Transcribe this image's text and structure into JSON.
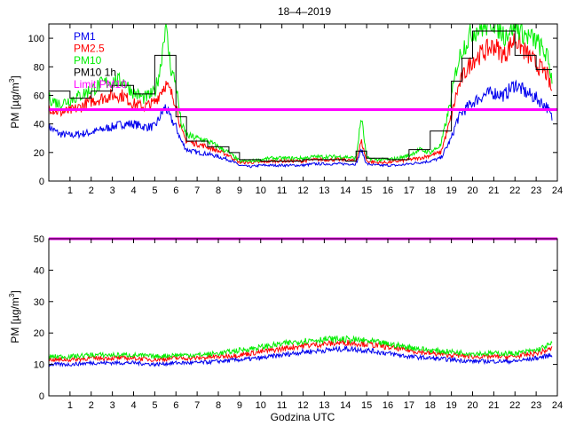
{
  "title": "18–4–2019",
  "xlabel": "Godzina UTC",
  "ylabel_top": "PM [µg/m",
  "ylabel_top_sup": "3",
  "ylabel_top_end": "]",
  "ylabel_bottom": "PM [µg/m",
  "ylabel_bottom_sup": "3",
  "ylabel_bottom_end": "]",
  "colors": {
    "pm1": "#0000ee",
    "pm25": "#ff0000",
    "pm10": "#00ee00",
    "pm10_1h": "#000000",
    "limit": "#ff00ff"
  },
  "chart_data": [
    {
      "type": "line",
      "xlim": [
        0,
        24
      ],
      "ylim": [
        0,
        110
      ],
      "xticks": [
        1,
        2,
        3,
        4,
        5,
        6,
        7,
        8,
        9,
        10,
        11,
        12,
        13,
        14,
        15,
        16,
        17,
        18,
        19,
        20,
        21,
        22,
        23,
        24
      ],
      "yticks": [
        0,
        20,
        40,
        60,
        80,
        100
      ],
      "legend_position": "top-left",
      "legend": [
        "PM1",
        "PM2.5",
        "PM10",
        "PM10 1h",
        "Limit PM10"
      ],
      "x": [
        0,
        0.5,
        1,
        1.5,
        2,
        2.5,
        3,
        3.5,
        4,
        4.5,
        5,
        5.25,
        5.5,
        5.75,
        6,
        6.25,
        6.5,
        7,
        7.5,
        8,
        8.5,
        9,
        9.5,
        10,
        10.5,
        11,
        11.5,
        12,
        12.5,
        13,
        13.5,
        14,
        14.5,
        14.75,
        15,
        15.5,
        16,
        16.5,
        17,
        17.5,
        18,
        18.5,
        19,
        19.25,
        19.5,
        20,
        20.5,
        21,
        21.5,
        22,
        22.5,
        23,
        23.5,
        23.75
      ],
      "series": [
        {
          "name": "PM1",
          "values": [
            38,
            33,
            32,
            33,
            34,
            36,
            38,
            40,
            40,
            38,
            38,
            45,
            52,
            44,
            38,
            28,
            22,
            20,
            19,
            17,
            15,
            11,
            10,
            11,
            11,
            11,
            11,
            11,
            12,
            12,
            12,
            12,
            12,
            22,
            12,
            11,
            11,
            11,
            12,
            13,
            14,
            16,
            30,
            42,
            48,
            55,
            60,
            62,
            60,
            68,
            62,
            58,
            52,
            44
          ]
        },
        {
          "name": "PM2.5",
          "values": [
            52,
            48,
            49,
            52,
            56,
            58,
            60,
            60,
            54,
            52,
            55,
            62,
            68,
            62,
            55,
            35,
            28,
            26,
            24,
            21,
            18,
            13,
            13,
            13,
            14,
            14,
            14,
            14,
            15,
            15,
            15,
            15,
            14,
            28,
            14,
            13,
            13,
            14,
            15,
            16,
            18,
            20,
            45,
            62,
            72,
            85,
            90,
            95,
            88,
            100,
            90,
            82,
            75,
            62
          ]
        },
        {
          "name": "PM10",
          "values": [
            58,
            54,
            57,
            60,
            64,
            68,
            70,
            70,
            62,
            58,
            62,
            78,
            110,
            80,
            68,
            40,
            32,
            30,
            28,
            24,
            20,
            14,
            14,
            15,
            16,
            16,
            16,
            16,
            17,
            17,
            17,
            17,
            16,
            45,
            16,
            15,
            15,
            16,
            18,
            22,
            20,
            25,
            58,
            80,
            92,
            105,
            108,
            112,
            102,
            110,
            102,
            98,
            88,
            72
          ]
        },
        {
          "name": "PM10 1h",
          "step": true,
          "values": [
            63,
            63,
            58,
            58,
            63,
            63,
            67,
            67,
            61,
            61,
            88,
            88,
            88,
            88,
            45,
            45,
            28,
            28,
            24,
            24,
            20,
            15,
            15,
            14,
            14,
            14,
            14,
            15,
            15,
            15,
            15,
            14,
            21,
            21,
            16,
            16,
            15,
            15,
            22,
            22,
            35,
            35,
            70,
            70,
            86,
            105,
            105,
            105,
            105,
            88,
            88,
            78,
            78,
            78
          ]
        },
        {
          "name": "Limit PM10",
          "constant": 50
        }
      ]
    },
    {
      "type": "line",
      "xlim": [
        0,
        24
      ],
      "ylim": [
        0,
        50
      ],
      "xticks": [
        1,
        2,
        3,
        4,
        5,
        6,
        7,
        8,
        9,
        10,
        11,
        12,
        13,
        14,
        15,
        16,
        17,
        18,
        19,
        20,
        21,
        22,
        23,
        24
      ],
      "yticks": [
        0,
        10,
        20,
        30,
        40,
        50
      ],
      "x": [
        0,
        1,
        2,
        3,
        4,
        5,
        6,
        7,
        8,
        9,
        10,
        11,
        12,
        13,
        14,
        15,
        16,
        17,
        18,
        19,
        20,
        21,
        22,
        23,
        23.75
      ],
      "series": [
        {
          "name": "PM1",
          "values": [
            10,
            10,
            10.5,
            10.5,
            10.5,
            10,
            10.5,
            10.5,
            11,
            11.5,
            12,
            13,
            14,
            14.5,
            15,
            14.5,
            13.5,
            12.5,
            12,
            11.5,
            11,
            11,
            11,
            12,
            13
          ]
        },
        {
          "name": "PM2.5",
          "values": [
            11.5,
            11.5,
            12,
            12,
            12,
            11.5,
            12,
            12,
            12.5,
            13,
            14,
            15,
            16,
            16.5,
            17,
            16.5,
            15.5,
            14.5,
            13.5,
            13,
            12.5,
            12.5,
            12.5,
            13.5,
            15
          ]
        },
        {
          "name": "PM10",
          "values": [
            12.5,
            12.5,
            13,
            13,
            13,
            12.5,
            13,
            13,
            13.5,
            14.5,
            15.5,
            16.5,
            17.5,
            18,
            18,
            17.5,
            16.5,
            15.5,
            14.5,
            14,
            13.5,
            13.5,
            13.5,
            14.5,
            16.5
          ]
        },
        {
          "name": "Limit PM10",
          "constant": 50
        }
      ]
    }
  ]
}
